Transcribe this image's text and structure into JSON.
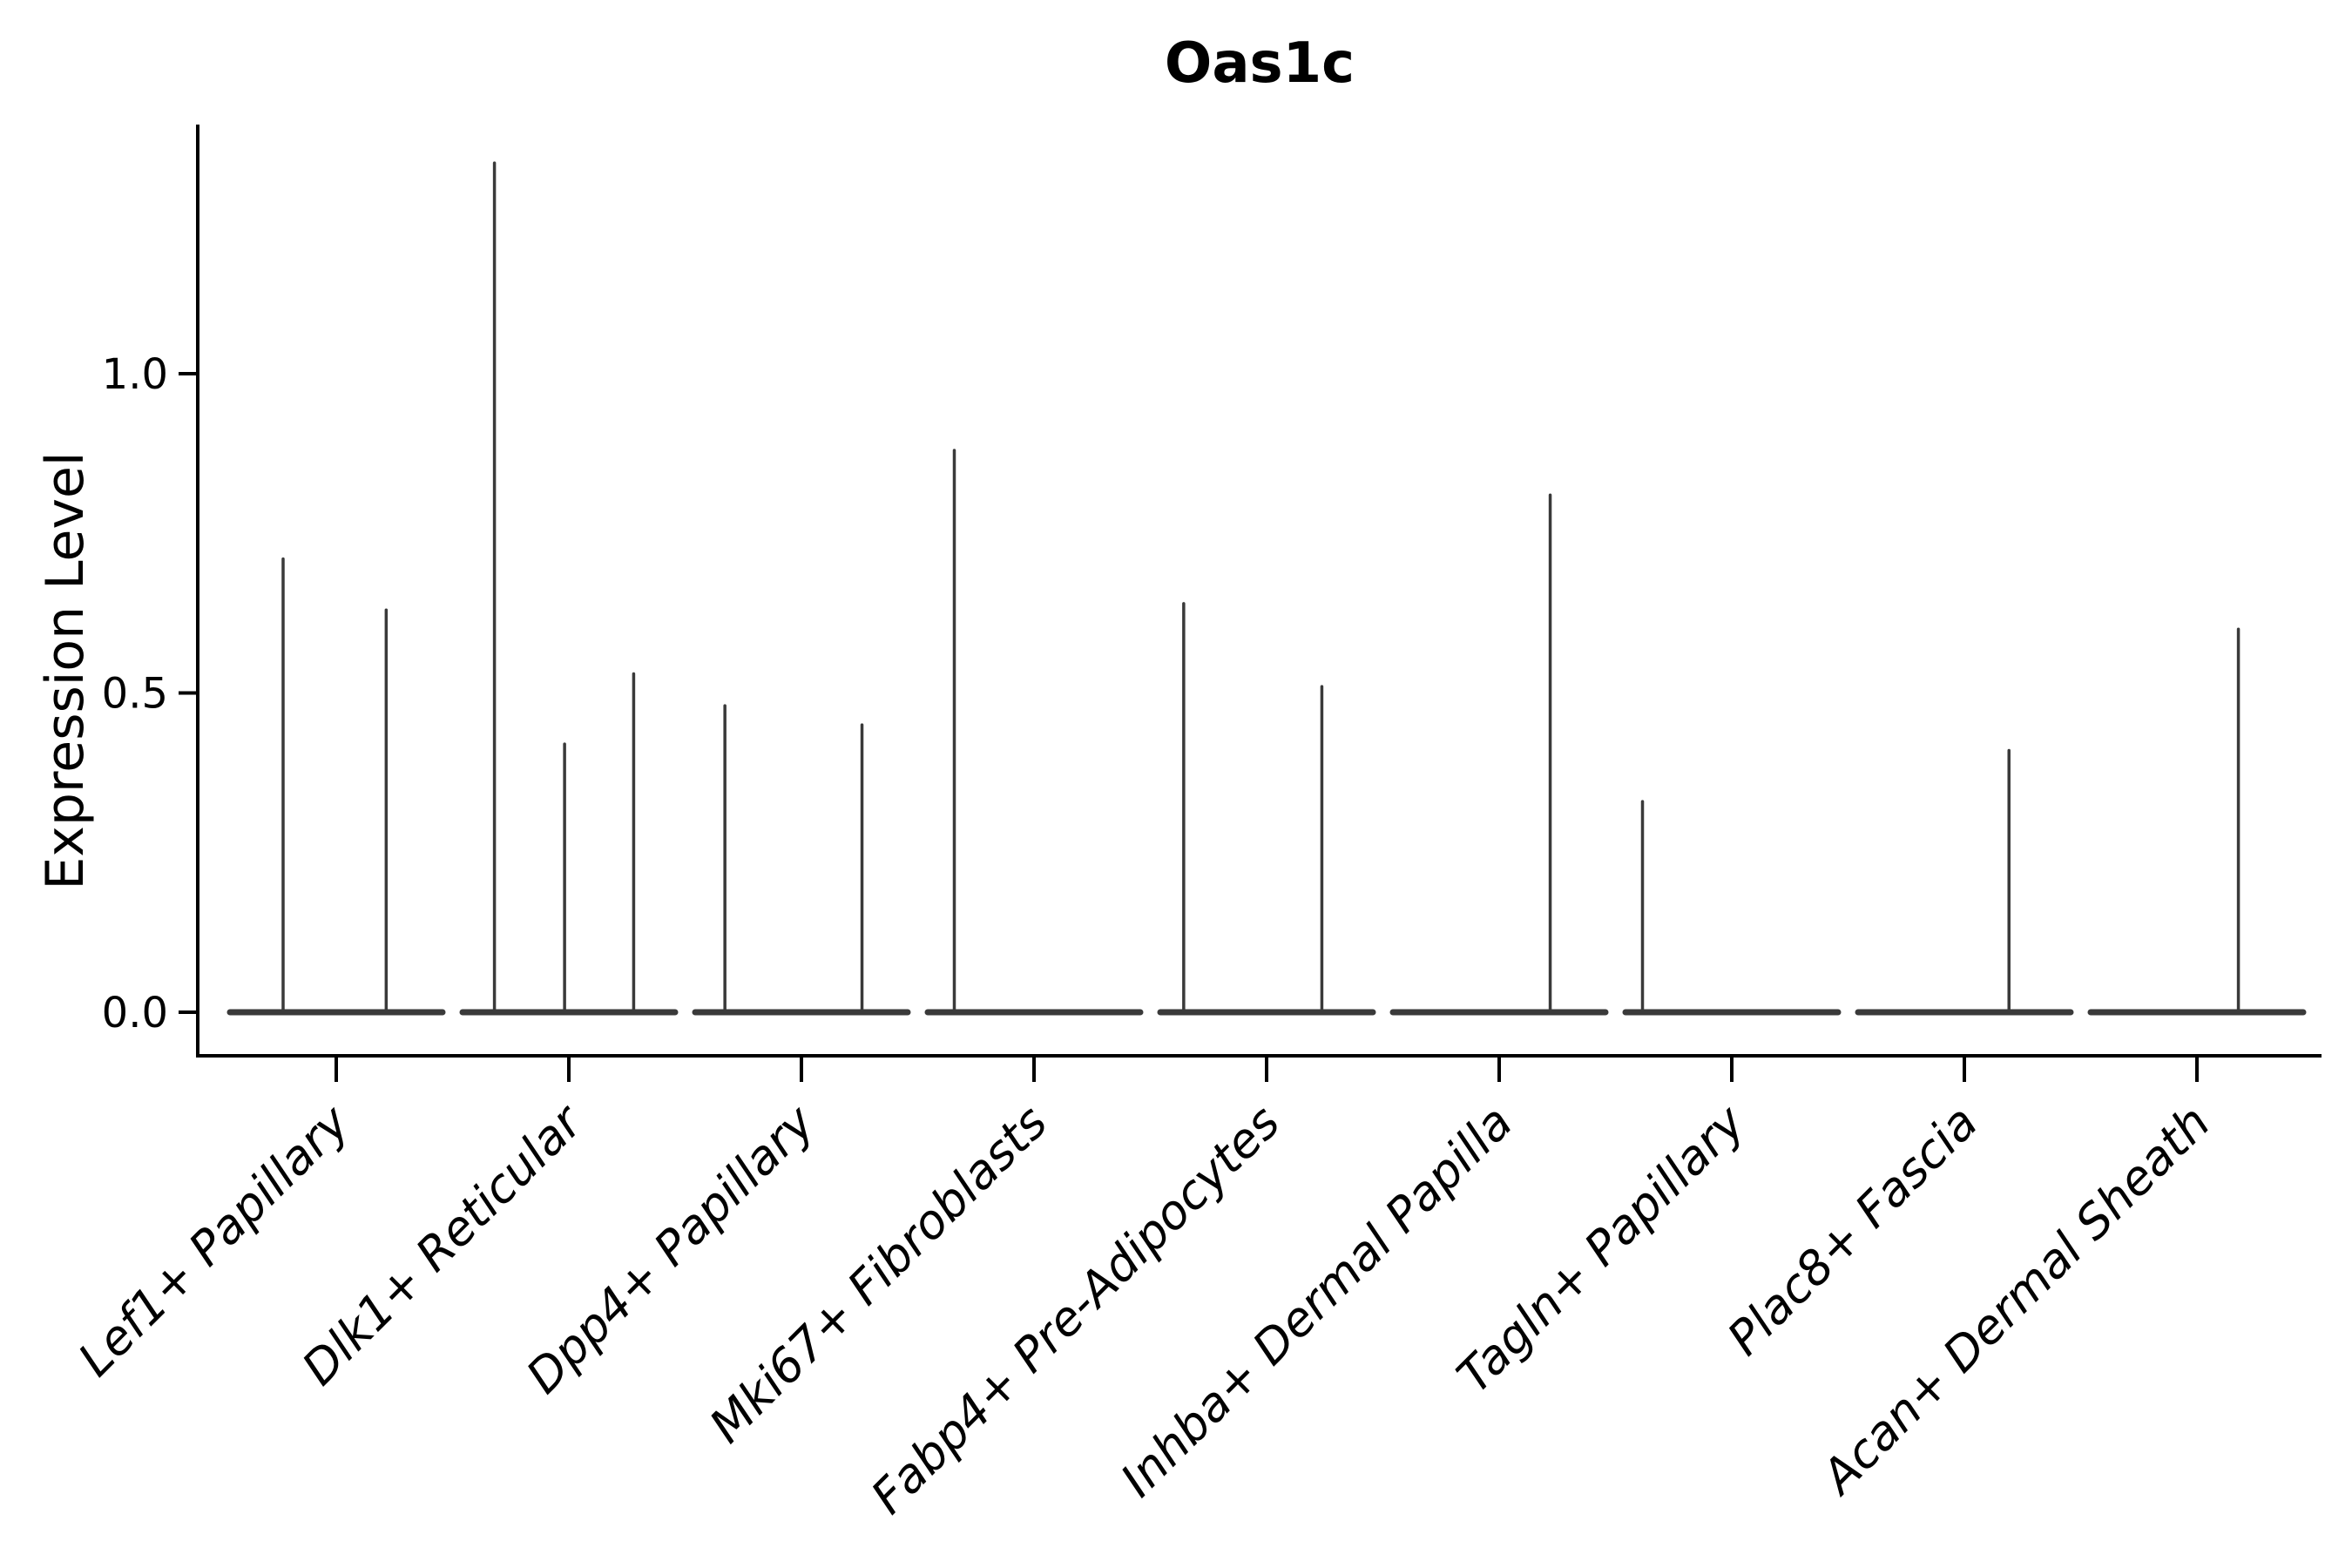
{
  "chart_data": {
    "type": "violin",
    "title": "Oas1c",
    "ylabel": "Expression Level",
    "xlabel": "",
    "yticks": [
      {
        "label": "0.0",
        "value": 0.0
      },
      {
        "label": "0.5",
        "value": 0.5
      },
      {
        "label": "1.0",
        "value": 1.0
      }
    ],
    "ylim": [
      -0.07,
      1.39
    ],
    "grid": false,
    "legend_position": "none",
    "axis_color": "#000000",
    "violin_color": "#3A3A3A",
    "categories": [
      "Lef1+ Papillary",
      "Dlk1+ Reticular",
      "Dpp4+ Papillary",
      "Mki67+ Fibroblasts",
      "Fabp4+ Pre-Adipocytes",
      "Inhba+ Dermal Papilla",
      "Tagln+ Papillary",
      "Plac8+ Fascia",
      "Acan+ Dermal Sheath"
    ],
    "groups": [
      {
        "category": "Lef1+ Papillary",
        "baseline_value": 0.0,
        "spikes": [
          {
            "pos": -0.5,
            "value": 0.71
          },
          {
            "pos": 0.47,
            "value": 0.63
          }
        ]
      },
      {
        "category": "Dlk1+ Reticular",
        "baseline_value": 0.0,
        "spikes": [
          {
            "pos": -0.7,
            "value": 1.33
          },
          {
            "pos": -0.04,
            "value": 0.42
          },
          {
            "pos": 0.61,
            "value": 0.53
          }
        ]
      },
      {
        "category": "Dpp4+ Papillary",
        "baseline_value": 0.0,
        "spikes": [
          {
            "pos": -0.72,
            "value": 0.48
          },
          {
            "pos": 0.57,
            "value": 0.45
          }
        ]
      },
      {
        "category": "Mki67+ Fibroblasts",
        "baseline_value": 0.0,
        "spikes": [
          {
            "pos": -0.75,
            "value": 0.88
          }
        ]
      },
      {
        "category": "Fabp4+ Pre-Adipocytes",
        "baseline_value": 0.0,
        "spikes": [
          {
            "pos": -0.78,
            "value": 0.64
          },
          {
            "pos": 0.52,
            "value": 0.51
          }
        ]
      },
      {
        "category": "Inhba+ Dermal Papilla",
        "baseline_value": 0.0,
        "spikes": [
          {
            "pos": 0.48,
            "value": 0.81
          }
        ]
      },
      {
        "category": "Tagln+ Papillary",
        "baseline_value": 0.0,
        "spikes": [
          {
            "pos": -0.84,
            "value": 0.33
          }
        ]
      },
      {
        "category": "Plac8+ Fascia",
        "baseline_value": 0.0,
        "spikes": [
          {
            "pos": 0.42,
            "value": 0.41
          }
        ]
      },
      {
        "category": "Acan+ Dermal Sheath",
        "baseline_value": 0.0,
        "spikes": [
          {
            "pos": 0.39,
            "value": 0.6
          }
        ]
      }
    ]
  }
}
